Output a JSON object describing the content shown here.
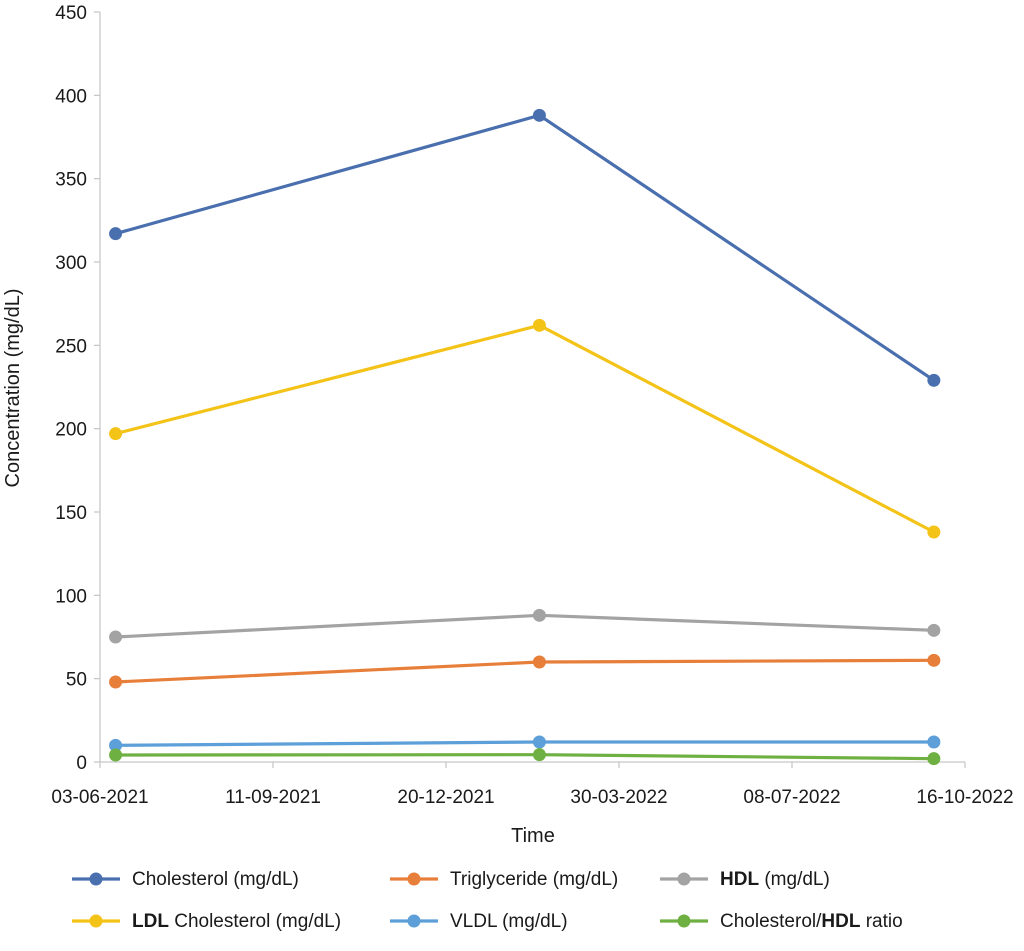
{
  "chart_data": {
    "type": "line",
    "title": "",
    "xlabel": "Time",
    "ylabel": "Concentration (mg/dL)",
    "ylim": [
      0,
      450
    ],
    "y_ticks": [
      0,
      50,
      100,
      150,
      200,
      250,
      300,
      350,
      400,
      450
    ],
    "x_ticks": [
      "03-06-2021",
      "11-09-2021",
      "20-12-2021",
      "30-03-2022",
      "08-07-2022",
      "16-10-2022"
    ],
    "xlim": [
      "03-06-2021",
      "16-10-2022"
    ],
    "x": [
      "2021-06-12",
      "2022-02-12",
      "2022-09-28"
    ],
    "series": [
      {
        "name": "Cholesterol (mg/dL)",
        "color": "#4a6faf",
        "values": [
          317,
          388,
          229
        ]
      },
      {
        "name": "Triglyceride (mg/dL)",
        "color": "#e77f3a",
        "values": [
          48,
          60,
          61
        ]
      },
      {
        "name": "HDL (mg/dL)",
        "color": "#a3a3a3",
        "values": [
          75,
          88,
          79
        ]
      },
      {
        "name": "LDL Cholesterol (mg/dL)",
        "color": "#f4c318",
        "values": [
          197,
          262,
          138
        ]
      },
      {
        "name": "VLDL (mg/dL)",
        "color": "#5d9fd8",
        "values": [
          10,
          12,
          12
        ]
      },
      {
        "name": "Cholesterol/HDL ratio",
        "color": "#6fb043",
        "values": [
          4.2,
          4.4,
          2.0
        ]
      }
    ],
    "legend": {
      "position": "bottom",
      "entries": [
        {
          "prefix": "",
          "bold": "",
          "suffix": "Cholesterol (mg/dL)"
        },
        {
          "prefix": "",
          "bold": "",
          "suffix": "Triglyceride (mg/dL)"
        },
        {
          "prefix": "",
          "bold": "HDL",
          "suffix": " (mg/dL)"
        },
        {
          "prefix": "",
          "bold": "LDL",
          "suffix": " Cholesterol (mg/dL)"
        },
        {
          "prefix": "",
          "bold": "",
          "suffix": "VLDL (mg/dL)"
        },
        {
          "prefix": "Cholesterol/",
          "bold": "HDL",
          "suffix": " ratio"
        }
      ]
    },
    "grid": false
  }
}
